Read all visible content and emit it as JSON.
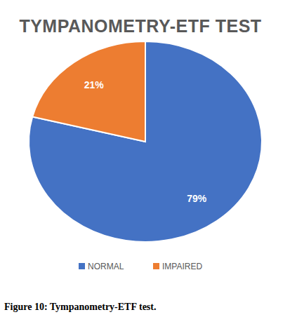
{
  "chart_data": {
    "type": "pie",
    "title": "TYMPANOMETRY-ETF TEST",
    "categories": [
      "NORMAL",
      "IMPAIRED"
    ],
    "values": [
      79,
      21
    ],
    "value_labels": [
      "79%",
      "21%"
    ],
    "colors": [
      "#4472c4",
      "#ed7d31"
    ],
    "data_labels": true,
    "legend": "bottom",
    "caption": "Figure 10: Tympanometry-ETF test."
  }
}
